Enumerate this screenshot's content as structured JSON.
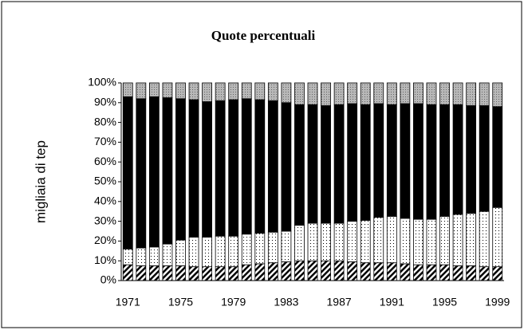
{
  "chart_data": {
    "type": "stacked_bar",
    "title": "Quote percentuali",
    "y_label": "migliaia di tep",
    "categories": [
      1971,
      null,
      null,
      null,
      1975,
      null,
      null,
      null,
      1979,
      null,
      null,
      null,
      1983,
      null,
      null,
      null,
      1987,
      null,
      null,
      null,
      1991,
      null,
      null,
      null,
      1995,
      null,
      null,
      null,
      1999
    ],
    "ylim": [
      0,
      100
    ],
    "yticks": [
      {
        "value": 0,
        "label": "0%"
      },
      {
        "value": 10,
        "label": "10%"
      },
      {
        "value": 20,
        "label": "20%"
      },
      {
        "value": 30,
        "label": "30%"
      },
      {
        "value": 40,
        "label": "40%"
      },
      {
        "value": 50,
        "label": "50%"
      },
      {
        "value": 60,
        "label": "60%"
      },
      {
        "value": 70,
        "label": "70%"
      },
      {
        "value": 80,
        "label": "80%"
      },
      {
        "value": 90,
        "label": "90%"
      },
      {
        "value": 100,
        "label": "100%"
      }
    ],
    "series": [
      {
        "color": "#000000",
        "pattern": "hatch",
        "values": [
          8,
          7.5,
          7.5,
          7.5,
          7.5,
          7,
          7,
          7,
          7,
          8,
          8.5,
          9,
          9.5,
          10,
          10,
          10,
          10,
          9.5,
          9,
          9,
          9,
          8.5,
          8,
          8,
          8,
          7.5,
          7.5,
          7,
          7
        ]
      },
      {
        "color": "#ffffff",
        "pattern": "dots",
        "values": [
          8,
          9,
          9.5,
          11,
          13,
          15,
          15,
          15.5,
          15.5,
          15.5,
          15.5,
          15.5,
          15.5,
          18,
          19,
          19,
          19,
          20.5,
          21.5,
          23,
          23.5,
          23,
          23,
          23,
          24.5,
          26,
          26.5,
          28,
          30
        ]
      },
      {
        "color": "#000000",
        "pattern": "solid",
        "values": [
          77,
          75.5,
          76,
          74,
          71.5,
          69.5,
          68.5,
          68.5,
          69,
          68.5,
          67.5,
          66.5,
          65,
          61,
          60,
          59.5,
          60,
          59.5,
          58.5,
          57.5,
          56.5,
          58,
          58.5,
          58,
          56.5,
          55.5,
          54.5,
          53.5,
          51
        ]
      },
      {
        "color": "#b8b8b8",
        "pattern": "speckle",
        "values": [
          7,
          8,
          7,
          7.5,
          8,
          8.5,
          9.5,
          9,
          8.5,
          8,
          8.5,
          9,
          10,
          11,
          11,
          11.5,
          11,
          10.5,
          11,
          10.5,
          11,
          10.5,
          10.5,
          11,
          11,
          11,
          11.5,
          11.5,
          12
        ]
      }
    ]
  }
}
